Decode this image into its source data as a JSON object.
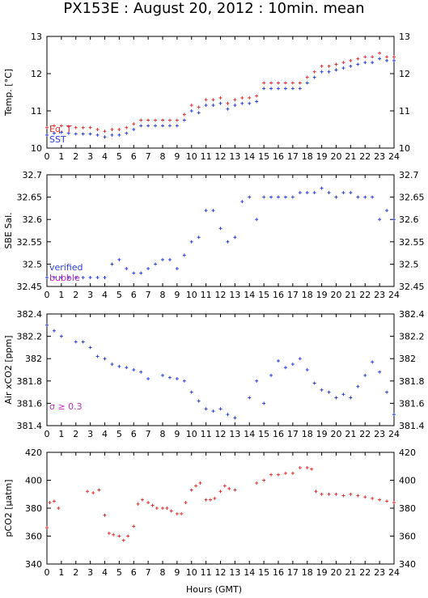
{
  "title": "PX153E : August 20, 2012 : 10min. mean",
  "xlabel": "Hours (GMT)",
  "chart_data": [
    {
      "type": "scatter",
      "ylabel": "Temp. [°C]",
      "xlim": [
        0,
        24
      ],
      "ylim": [
        10,
        13
      ],
      "x_ticks": [
        "0",
        "1",
        "2",
        "3",
        "4",
        "5",
        "6",
        "7",
        "8",
        "9",
        "10",
        "11",
        "12",
        "13",
        "14",
        "15",
        "16",
        "17",
        "18",
        "19",
        "20",
        "21",
        "22",
        "23",
        "24"
      ],
      "y_ticks": [
        "10",
        "11",
        "12",
        "13"
      ],
      "series": [
        {
          "name": "Eq. T",
          "color": "#e03030",
          "x": [
            0,
            0.5,
            1,
            1.5,
            2,
            2.5,
            3,
            3.5,
            4,
            4.5,
            5,
            5.5,
            6,
            6.5,
            7,
            7.5,
            8,
            8.5,
            9,
            9.5,
            10,
            10.5,
            11,
            11.5,
            12,
            12.5,
            13,
            13.5,
            14,
            14.5,
            15,
            15.5,
            16,
            16.5,
            17,
            17.5,
            18,
            18.5,
            19,
            19.5,
            20,
            20.5,
            21,
            21.5,
            22,
            22.5,
            23,
            23.5,
            24
          ],
          "y": [
            10.55,
            10.6,
            10.6,
            10.58,
            10.55,
            10.55,
            10.55,
            10.5,
            10.45,
            10.5,
            10.5,
            10.55,
            10.65,
            10.75,
            10.75,
            10.75,
            10.75,
            10.75,
            10.75,
            10.9,
            11.15,
            11.1,
            11.3,
            11.3,
            11.35,
            11.2,
            11.3,
            11.35,
            11.35,
            11.4,
            11.75,
            11.75,
            11.75,
            11.75,
            11.75,
            11.75,
            11.9,
            12.05,
            12.2,
            12.2,
            12.25,
            12.3,
            12.35,
            12.4,
            12.45,
            12.45,
            12.55,
            12.45,
            12.45
          ]
        },
        {
          "name": "SST",
          "color": "#2c3fe0",
          "x": [
            0,
            0.5,
            1,
            1.5,
            2,
            2.5,
            3,
            3.5,
            4,
            4.5,
            5,
            5.5,
            6,
            6.5,
            7,
            7.5,
            8,
            8.5,
            9,
            9.5,
            10,
            10.5,
            11,
            11.5,
            12,
            12.5,
            13,
            13.5,
            14,
            14.5,
            15,
            15.5,
            16,
            16.5,
            17,
            17.5,
            18,
            18.5,
            19,
            19.5,
            20,
            20.5,
            21,
            21.5,
            22,
            22.5,
            23,
            23.5,
            24
          ],
          "y": [
            10.35,
            10.4,
            10.42,
            10.4,
            10.38,
            10.38,
            10.38,
            10.35,
            10.3,
            10.35,
            10.35,
            10.4,
            10.5,
            10.6,
            10.6,
            10.6,
            10.6,
            10.6,
            10.6,
            10.75,
            11.0,
            10.95,
            11.15,
            11.15,
            11.2,
            11.05,
            11.15,
            11.2,
            11.2,
            11.25,
            11.6,
            11.6,
            11.6,
            11.6,
            11.6,
            11.6,
            11.75,
            11.9,
            12.05,
            12.05,
            12.1,
            12.15,
            12.2,
            12.25,
            12.3,
            12.3,
            12.4,
            12.35,
            12.35
          ]
        }
      ]
    },
    {
      "type": "scatter",
      "ylabel": "SBE Sal.",
      "xlim": [
        0,
        24
      ],
      "ylim": [
        32.45,
        32.7
      ],
      "x_ticks": [
        "0",
        "1",
        "2",
        "3",
        "4",
        "5",
        "6",
        "7",
        "8",
        "9",
        "10",
        "11",
        "12",
        "13",
        "14",
        "15",
        "16",
        "17",
        "18",
        "19",
        "20",
        "21",
        "22",
        "23",
        "24"
      ],
      "y_ticks": [
        "32.45",
        "32.5",
        "32.55",
        "32.6",
        "32.65",
        "32.7"
      ],
      "series": [
        {
          "name": "verified",
          "color": "#2c3fe0",
          "x": [
            0,
            0.5,
            1,
            1.5,
            2,
            2.5,
            3,
            3.5,
            4,
            4.5,
            5,
            5.5,
            6,
            6.5,
            7,
            7.5,
            8,
            8.5,
            9,
            9.5,
            10,
            10.5,
            11,
            11.5,
            12,
            12.5,
            13,
            13.5,
            14,
            14.5,
            15,
            15.5,
            16,
            16.5,
            17,
            17.5,
            18,
            18.5,
            19,
            19.5,
            20,
            20.5,
            21,
            21.5,
            22,
            22.5,
            23,
            23.5,
            24
          ],
          "y": [
            32.47,
            32.47,
            32.47,
            32.47,
            32.47,
            32.47,
            32.47,
            32.47,
            32.47,
            32.5,
            32.51,
            32.49,
            32.48,
            32.48,
            32.49,
            32.5,
            32.51,
            32.51,
            32.49,
            32.52,
            32.55,
            32.56,
            32.62,
            32.62,
            32.58,
            32.55,
            32.56,
            32.64,
            32.65,
            32.6,
            32.65,
            32.65,
            32.65,
            32.65,
            32.65,
            32.66,
            32.66,
            32.66,
            32.67,
            32.66,
            32.65,
            32.66,
            32.66,
            32.65,
            32.65,
            32.65,
            32.6,
            32.62,
            32.6
          ]
        },
        {
          "name": "bubble",
          "color": "#c030c0",
          "x": [],
          "y": []
        }
      ]
    },
    {
      "type": "scatter",
      "ylabel": "Air xCO2 [ppm]",
      "annotation": "σ ≥ 0.3",
      "xlim": [
        0,
        24
      ],
      "ylim": [
        381.4,
        382.4
      ],
      "x_ticks": [
        "0",
        "1",
        "2",
        "3",
        "4",
        "5",
        "6",
        "7",
        "8",
        "9",
        "10",
        "11",
        "12",
        "13",
        "14",
        "15",
        "16",
        "17",
        "18",
        "19",
        "20",
        "21",
        "22",
        "23",
        "24"
      ],
      "y_ticks": [
        "381.4",
        "381.6",
        "381.8",
        "382",
        "382.2",
        "382.4"
      ],
      "series": [
        {
          "name": "",
          "color": "#2c3fe0",
          "x": [
            0,
            0.5,
            1,
            2,
            2.5,
            3,
            3.5,
            4,
            4.5,
            5,
            5.5,
            6,
            6.5,
            7,
            8,
            8.5,
            9,
            9.5,
            10,
            10.5,
            11,
            11.5,
            12,
            12.5,
            13,
            14,
            14.5,
            15,
            15.5,
            16,
            16.5,
            17,
            17.5,
            18,
            18.5,
            19,
            19.5,
            20,
            20.5,
            21,
            21.5,
            22,
            22.5,
            23,
            23.5,
            24
          ],
          "y": [
            382.3,
            382.25,
            382.2,
            382.15,
            382.15,
            382.1,
            382.02,
            382.0,
            381.95,
            381.93,
            381.92,
            381.9,
            381.88,
            381.82,
            381.85,
            381.83,
            381.82,
            381.8,
            381.7,
            381.62,
            381.55,
            381.53,
            381.55,
            381.5,
            381.47,
            381.65,
            381.8,
            381.6,
            381.85,
            381.98,
            381.92,
            381.95,
            382.0,
            381.9,
            381.78,
            381.72,
            381.7,
            381.65,
            381.68,
            381.65,
            381.75,
            381.85,
            381.97,
            381.88,
            381.7,
            381.5
          ]
        }
      ]
    },
    {
      "type": "scatter",
      "ylabel": "pCO2 [µatm]",
      "xlim": [
        0,
        24
      ],
      "ylim": [
        340,
        420
      ],
      "x_ticks": [
        "0",
        "1",
        "2",
        "3",
        "4",
        "5",
        "6",
        "7",
        "8",
        "9",
        "10",
        "11",
        "12",
        "13",
        "14",
        "15",
        "16",
        "17",
        "18",
        "19",
        "20",
        "21",
        "22",
        "23",
        "24"
      ],
      "y_ticks": [
        "340",
        "360",
        "380",
        "400",
        "420"
      ],
      "series": [
        {
          "name": "",
          "color": "#e03030",
          "x": [
            0,
            0.2,
            0.5,
            0.8,
            2.8,
            3.2,
            3.6,
            4,
            4.3,
            4.6,
            5,
            5.3,
            5.6,
            6,
            6.3,
            6.6,
            7,
            7.3,
            7.6,
            8,
            8.3,
            8.6,
            9,
            9.3,
            9.6,
            10,
            10.3,
            10.6,
            11,
            11.3,
            11.6,
            12,
            12.3,
            12.6,
            13,
            14.5,
            15,
            15.5,
            16,
            16.5,
            17,
            17.5,
            18,
            18.3,
            18.6,
            19,
            19.5,
            20,
            20.5,
            21,
            21.5,
            22,
            22.5,
            23,
            23.5,
            24
          ],
          "y": [
            366,
            384,
            385,
            380,
            392,
            391,
            393,
            375,
            362,
            361,
            360,
            357,
            360,
            367,
            383,
            386,
            384,
            382,
            380,
            380,
            380,
            378,
            376,
            376,
            384,
            393,
            396,
            398,
            386,
            386,
            387,
            392,
            396,
            394,
            393,
            398,
            400,
            404,
            404,
            405,
            405,
            409,
            409,
            408,
            392,
            390,
            390,
            390,
            389,
            390,
            389,
            388,
            387,
            386,
            385,
            384
          ]
        }
      ]
    }
  ]
}
